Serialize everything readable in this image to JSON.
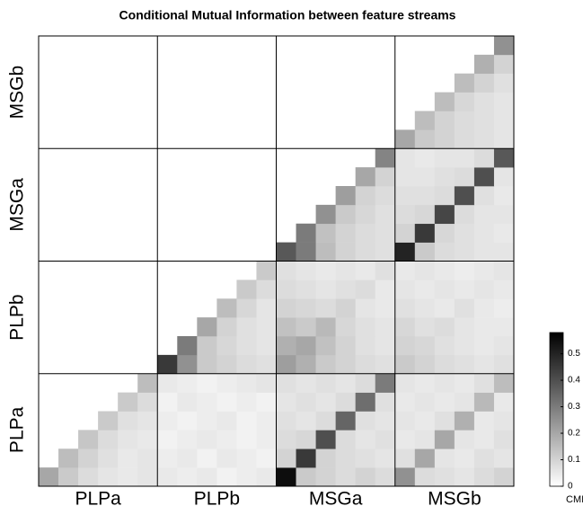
{
  "chart_data": {
    "type": "heatmap",
    "title": "Conditional Mutual Information between feature streams",
    "x_blocks": [
      "PLPa",
      "PLPb",
      "MSGa",
      "MSGb"
    ],
    "y_blocks": [
      "PLPa",
      "PLPb",
      "MSGa",
      "MSGb"
    ],
    "colorbar_label": "CMI/bits",
    "zlim": [
      0,
      0.58
    ],
    "zticks": [
      0,
      0.1,
      0.2,
      0.3,
      0.4,
      0.5
    ],
    "z": [
      [
        0.2,
        0.12,
        0.08,
        0.06,
        0.05,
        0.06,
        0.05,
        0.04,
        0.05,
        0.03,
        0.04,
        0.05,
        0.55,
        0.12,
        0.1,
        0.08,
        0.1,
        0.08,
        0.25,
        0.08,
        0.07,
        0.06,
        0.08,
        0.1
      ],
      [
        null,
        0.15,
        0.1,
        0.07,
        0.05,
        0.06,
        0.04,
        0.05,
        0.03,
        0.05,
        0.04,
        0.03,
        0.1,
        0.45,
        0.1,
        0.08,
        0.07,
        0.06,
        0.07,
        0.2,
        0.06,
        0.05,
        0.07,
        0.06
      ],
      [
        null,
        null,
        0.13,
        0.08,
        0.06,
        0.05,
        0.03,
        0.04,
        0.05,
        0.04,
        0.03,
        0.04,
        0.08,
        0.09,
        0.4,
        0.08,
        0.06,
        0.07,
        0.05,
        0.06,
        0.2,
        0.06,
        0.05,
        0.07
      ],
      [
        null,
        null,
        null,
        0.12,
        0.07,
        0.06,
        0.04,
        0.03,
        0.04,
        0.05,
        0.03,
        0.04,
        0.07,
        0.06,
        0.08,
        0.35,
        0.07,
        0.06,
        0.06,
        0.05,
        0.07,
        0.18,
        0.05,
        0.06
      ],
      [
        null,
        null,
        null,
        null,
        0.12,
        0.08,
        0.03,
        0.05,
        0.04,
        0.03,
        0.04,
        0.03,
        0.06,
        0.07,
        0.06,
        0.08,
        0.33,
        0.07,
        0.05,
        0.06,
        0.05,
        0.06,
        0.16,
        0.05
      ],
      [
        null,
        null,
        null,
        null,
        null,
        0.15,
        0.05,
        0.04,
        0.03,
        0.04,
        0.05,
        0.06,
        0.07,
        0.06,
        0.07,
        0.06,
        0.08,
        0.3,
        0.06,
        0.05,
        0.06,
        0.05,
        0.07,
        0.15
      ],
      [
        null,
        null,
        null,
        null,
        null,
        null,
        0.45,
        0.25,
        0.12,
        0.1,
        0.08,
        0.07,
        0.22,
        0.18,
        0.12,
        0.1,
        0.08,
        0.07,
        0.12,
        0.1,
        0.08,
        0.07,
        0.06,
        0.07
      ],
      [
        null,
        null,
        null,
        null,
        null,
        null,
        null,
        0.3,
        0.12,
        0.09,
        0.07,
        0.06,
        0.18,
        0.2,
        0.14,
        0.1,
        0.07,
        0.06,
        0.1,
        0.09,
        0.07,
        0.06,
        0.05,
        0.06
      ],
      [
        null,
        null,
        null,
        null,
        null,
        null,
        null,
        null,
        0.2,
        0.1,
        0.07,
        0.06,
        0.14,
        0.12,
        0.16,
        0.09,
        0.07,
        0.06,
        0.09,
        0.07,
        0.08,
        0.06,
        0.05,
        0.05
      ],
      [
        null,
        null,
        null,
        null,
        null,
        null,
        null,
        null,
        null,
        0.15,
        0.09,
        0.06,
        0.1,
        0.09,
        0.08,
        0.1,
        0.06,
        0.05,
        0.07,
        0.06,
        0.05,
        0.07,
        0.05,
        0.04
      ],
      [
        null,
        null,
        null,
        null,
        null,
        null,
        null,
        null,
        null,
        null,
        0.12,
        0.08,
        0.08,
        0.07,
        0.06,
        0.07,
        0.08,
        0.05,
        0.06,
        0.05,
        0.06,
        0.05,
        0.06,
        0.05
      ],
      [
        null,
        null,
        null,
        null,
        null,
        null,
        null,
        null,
        null,
        null,
        null,
        0.12,
        0.07,
        0.06,
        0.05,
        0.06,
        0.05,
        0.07,
        0.05,
        0.06,
        0.05,
        0.04,
        0.05,
        0.06
      ],
      [
        null,
        null,
        null,
        null,
        null,
        null,
        null,
        null,
        null,
        null,
        null,
        null,
        0.38,
        0.3,
        0.15,
        0.1,
        0.08,
        0.07,
        0.5,
        0.12,
        0.08,
        0.07,
        0.06,
        0.06
      ],
      [
        null,
        null,
        null,
        null,
        null,
        null,
        null,
        null,
        null,
        null,
        null,
        null,
        null,
        0.3,
        0.14,
        0.1,
        0.08,
        0.07,
        0.1,
        0.45,
        0.09,
        0.07,
        0.06,
        0.05
      ],
      [
        null,
        null,
        null,
        null,
        null,
        null,
        null,
        null,
        null,
        null,
        null,
        null,
        null,
        null,
        0.25,
        0.12,
        0.09,
        0.07,
        0.08,
        0.09,
        0.42,
        0.08,
        0.06,
        0.06
      ],
      [
        null,
        null,
        null,
        null,
        null,
        null,
        null,
        null,
        null,
        null,
        null,
        null,
        null,
        null,
        null,
        0.22,
        0.1,
        0.08,
        0.07,
        0.07,
        0.08,
        0.4,
        0.07,
        0.05
      ],
      [
        null,
        null,
        null,
        null,
        null,
        null,
        null,
        null,
        null,
        null,
        null,
        null,
        null,
        null,
        null,
        null,
        0.2,
        0.1,
        0.06,
        0.06,
        0.07,
        0.08,
        0.4,
        0.06
      ],
      [
        null,
        null,
        null,
        null,
        null,
        null,
        null,
        null,
        null,
        null,
        null,
        null,
        null,
        null,
        null,
        null,
        null,
        0.28,
        0.06,
        0.05,
        0.06,
        0.06,
        0.08,
        0.38
      ],
      [
        null,
        null,
        null,
        null,
        null,
        null,
        null,
        null,
        null,
        null,
        null,
        null,
        null,
        null,
        null,
        null,
        null,
        null,
        0.2,
        0.12,
        0.1,
        0.08,
        0.07,
        0.06
      ],
      [
        null,
        null,
        null,
        null,
        null,
        null,
        null,
        null,
        null,
        null,
        null,
        null,
        null,
        null,
        null,
        null,
        null,
        null,
        null,
        0.15,
        0.1,
        0.08,
        0.07,
        0.06
      ],
      [
        null,
        null,
        null,
        null,
        null,
        null,
        null,
        null,
        null,
        null,
        null,
        null,
        null,
        null,
        null,
        null,
        null,
        null,
        null,
        null,
        0.15,
        0.09,
        0.07,
        0.06
      ],
      [
        null,
        null,
        null,
        null,
        null,
        null,
        null,
        null,
        null,
        null,
        null,
        null,
        null,
        null,
        null,
        null,
        null,
        null,
        null,
        null,
        null,
        0.15,
        0.1,
        0.07
      ],
      [
        null,
        null,
        null,
        null,
        null,
        null,
        null,
        null,
        null,
        null,
        null,
        null,
        null,
        null,
        null,
        null,
        null,
        null,
        null,
        null,
        null,
        null,
        0.18,
        0.1
      ],
      [
        null,
        null,
        null,
        null,
        null,
        null,
        null,
        null,
        null,
        null,
        null,
        null,
        null,
        null,
        null,
        null,
        null,
        null,
        null,
        null,
        null,
        null,
        null,
        0.25
      ]
    ]
  }
}
